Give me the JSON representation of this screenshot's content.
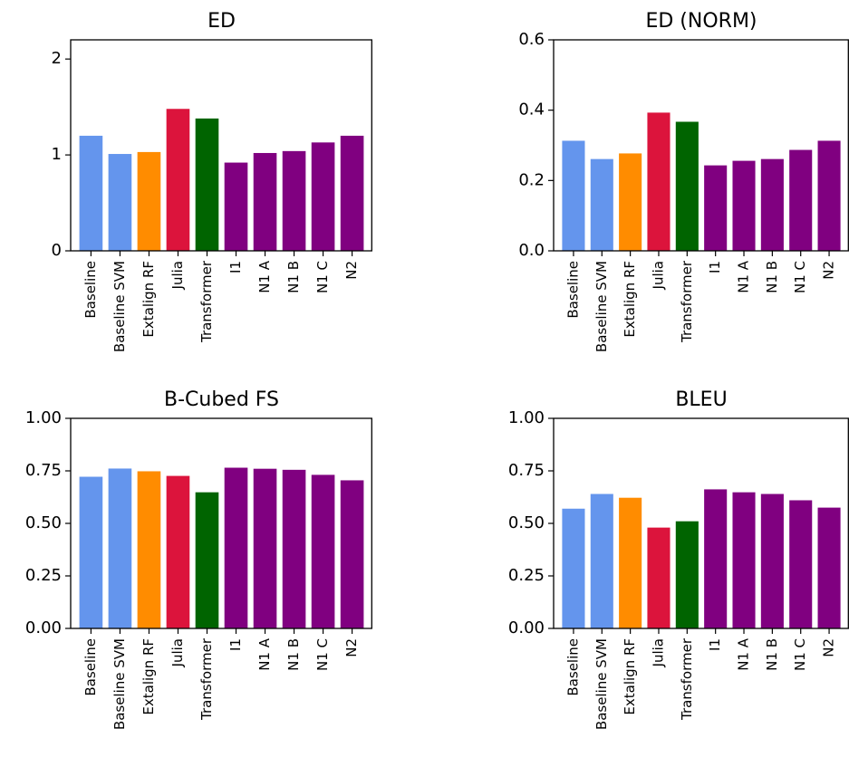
{
  "colors": {
    "baseline": "#6495ed",
    "extalign": "#ff8c00",
    "julia": "#dc143c",
    "transformer": "#006400",
    "neural": "#800080"
  },
  "chart_data": [
    {
      "type": "bar",
      "title": "ED",
      "categories": [
        "Baseline",
        "Baseline SVM",
        "Extalign RF",
        "Julia",
        "Transformer",
        "I1",
        "N1 A",
        "N1 B",
        "N1 C",
        "N2"
      ],
      "values": [
        1.2,
        1.01,
        1.03,
        1.48,
        1.38,
        0.92,
        1.02,
        1.04,
        1.13,
        1.2
      ],
      "bar_colors": [
        "#6495ed",
        "#6495ed",
        "#ff8c00",
        "#dc143c",
        "#006400",
        "#800080",
        "#800080",
        "#800080",
        "#800080",
        "#800080"
      ],
      "ylim": [
        0,
        2.2
      ],
      "yticks": [
        0,
        1,
        2
      ],
      "ytick_labels": [
        "0",
        "1",
        "2"
      ],
      "xlabel": "",
      "ylabel": "",
      "grid": false
    },
    {
      "type": "bar",
      "title": "ED (NORM)",
      "categories": [
        "Baseline",
        "Baseline SVM",
        "Extalign RF",
        "Julia",
        "Transformer",
        "I1",
        "N1 A",
        "N1 B",
        "N1 C",
        "N2"
      ],
      "values": [
        0.313,
        0.261,
        0.277,
        0.393,
        0.367,
        0.243,
        0.256,
        0.261,
        0.287,
        0.313
      ],
      "bar_colors": [
        "#6495ed",
        "#6495ed",
        "#ff8c00",
        "#dc143c",
        "#006400",
        "#800080",
        "#800080",
        "#800080",
        "#800080",
        "#800080"
      ],
      "ylim": [
        0,
        0.6
      ],
      "yticks": [
        0,
        0.2,
        0.4,
        0.6
      ],
      "ytick_labels": [
        "0.0",
        "0.2",
        "0.4",
        "0.6"
      ],
      "xlabel": "",
      "ylabel": "",
      "grid": false
    },
    {
      "type": "bar",
      "title": "B-Cubed FS",
      "categories": [
        "Baseline",
        "Baseline SVM",
        "Extalign RF",
        "Julia",
        "Transformer",
        "I1",
        "N1 A",
        "N1 B",
        "N1 C",
        "N2"
      ],
      "values": [
        0.722,
        0.761,
        0.748,
        0.726,
        0.648,
        0.765,
        0.76,
        0.755,
        0.731,
        0.705
      ],
      "bar_colors": [
        "#6495ed",
        "#6495ed",
        "#ff8c00",
        "#dc143c",
        "#006400",
        "#800080",
        "#800080",
        "#800080",
        "#800080",
        "#800080"
      ],
      "ylim": [
        0,
        1.0
      ],
      "yticks": [
        0,
        0.25,
        0.5,
        0.75,
        1.0
      ],
      "ytick_labels": [
        "0.00",
        "0.25",
        "0.50",
        "0.75",
        "1.00"
      ],
      "xlabel": "",
      "ylabel": "",
      "grid": false
    },
    {
      "type": "bar",
      "title": "BLEU",
      "categories": [
        "Baseline",
        "Baseline SVM",
        "Extalign RF",
        "Julia",
        "Transformer",
        "I1",
        "N1 A",
        "N1 B",
        "N1 C",
        "N2"
      ],
      "values": [
        0.57,
        0.64,
        0.622,
        0.48,
        0.51,
        0.662,
        0.648,
        0.64,
        0.61,
        0.575
      ],
      "bar_colors": [
        "#6495ed",
        "#6495ed",
        "#ff8c00",
        "#dc143c",
        "#006400",
        "#800080",
        "#800080",
        "#800080",
        "#800080",
        "#800080"
      ],
      "ylim": [
        0,
        1.0
      ],
      "yticks": [
        0,
        0.25,
        0.5,
        0.75,
        1.0
      ],
      "ytick_labels": [
        "0.00",
        "0.25",
        "0.50",
        "0.75",
        "1.00"
      ],
      "xlabel": "",
      "ylabel": "",
      "grid": false
    }
  ]
}
